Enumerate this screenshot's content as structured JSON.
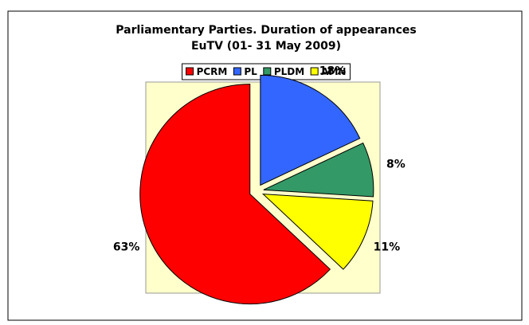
{
  "chart_data": {
    "type": "pie",
    "title": "Parliamentary Parties. Duration of appearances",
    "subtitle": "EuTV (01- 31 May 2009)",
    "categories": [
      "PCRM",
      "PL",
      "PLDM",
      "AMN"
    ],
    "values": [
      63,
      18,
      8,
      11
    ],
    "value_labels": [
      "63%",
      "18%",
      "8%",
      "11%"
    ],
    "colors": [
      "#ff0000",
      "#3366ff",
      "#339966",
      "#ffff00"
    ],
    "legend": "top"
  }
}
